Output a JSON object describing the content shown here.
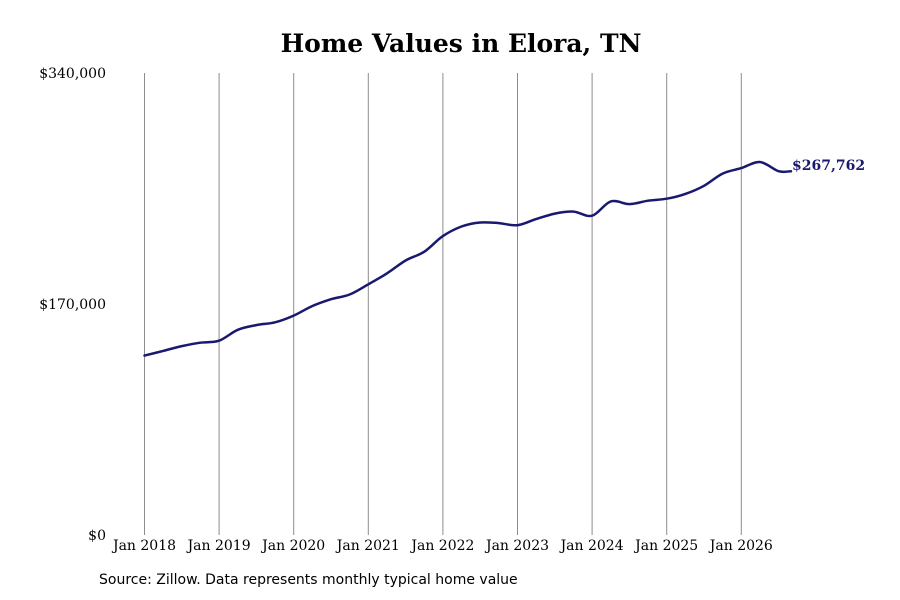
{
  "chart_data": {
    "type": "line",
    "title": "Home Values in Elora, TN",
    "xlabel": "",
    "ylabel": "",
    "ylim": [
      0,
      340000
    ],
    "y_ticks": [
      {
        "value": 0,
        "label": "$0"
      },
      {
        "value": 170000,
        "label": "$170,000"
      },
      {
        "value": 340000,
        "label": "$340,000"
      }
    ],
    "x_ticks": [
      "Jan 2018",
      "Jan 2019",
      "Jan 2020",
      "Jan 2021",
      "Jan 2022",
      "Jan 2023",
      "Jan 2024",
      "Jan 2025",
      "Jan 2026"
    ],
    "grid": "vertical lines at January of each year",
    "series": [
      {
        "color": "#191970",
        "x": [
          "2018-01",
          "2018-04",
          "2018-07",
          "2018-10",
          "2019-01",
          "2019-04",
          "2019-07",
          "2019-10",
          "2020-01",
          "2020-04",
          "2020-07",
          "2020-10",
          "2021-01",
          "2021-04",
          "2021-07",
          "2021-10",
          "2022-01",
          "2022-04",
          "2022-07",
          "2022-10",
          "2023-01",
          "2023-04",
          "2023-07",
          "2023-10",
          "2024-01",
          "2024-04",
          "2024-07",
          "2024-10",
          "2025-01",
          "2025-04",
          "2025-07",
          "2025-10",
          "2026-01",
          "2026-04",
          "2026-07",
          "2026-09"
        ],
        "values": [
          132000,
          135500,
          139000,
          141500,
          143000,
          151000,
          154500,
          156500,
          161500,
          168500,
          173500,
          177000,
          184500,
          192500,
          202000,
          208500,
          220000,
          227000,
          230000,
          229500,
          228000,
          232500,
          236500,
          238000,
          235000,
          245500,
          243500,
          246000,
          247500,
          251000,
          257000,
          266000,
          270000,
          274500,
          267762,
          267762
        ]
      }
    ],
    "end_label": "$267,762",
    "source": "Source: Zillow. Data represents monthly typical home value"
  }
}
